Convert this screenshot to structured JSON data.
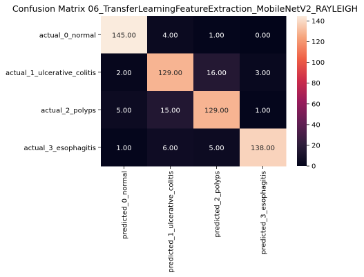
{
  "chart_data": {
    "type": "heatmap",
    "title": "Confusion Matrix 06_TransferLearningFeatureExtraction_MobileNetV2_RAYLEIGH",
    "row_labels": [
      "actual_0_normal",
      "actual_1_ulcerative_colitis",
      "actual_2_polyps",
      "actual_3_esophagitis"
    ],
    "col_labels": [
      "predicted_0_normal",
      "predicted_1_ulcerative_colitis",
      "predicted_2_polyps",
      "predicted_3_esophagitis"
    ],
    "values": [
      [
        145,
        4,
        1,
        0
      ],
      [
        2,
        129,
        16,
        3
      ],
      [
        5,
        15,
        129,
        1
      ],
      [
        1,
        6,
        5,
        138
      ]
    ],
    "cell_labels": [
      [
        "145.00",
        "4.00",
        "1.00",
        "0.00"
      ],
      [
        "2.00",
        "129.00",
        "16.00",
        "3.00"
      ],
      [
        "5.00",
        "15.00",
        "129.00",
        "1.00"
      ],
      [
        "1.00",
        "6.00",
        "5.00",
        "138.00"
      ]
    ],
    "colorbar": {
      "ticks": [
        "0",
        "20",
        "40",
        "60",
        "80",
        "100",
        "120",
        "140"
      ],
      "tick_values": [
        0,
        20,
        40,
        60,
        80,
        100,
        120,
        140
      ],
      "vmin": 0,
      "vmax": 145
    },
    "colormap": "rocket",
    "colormap_stops": [
      "#03051a",
      "#2e1e3b",
      "#611f53",
      "#981b5b",
      "#cc2c4a",
      "#ef5f45",
      "#f6a47c",
      "#faebdd"
    ]
  }
}
